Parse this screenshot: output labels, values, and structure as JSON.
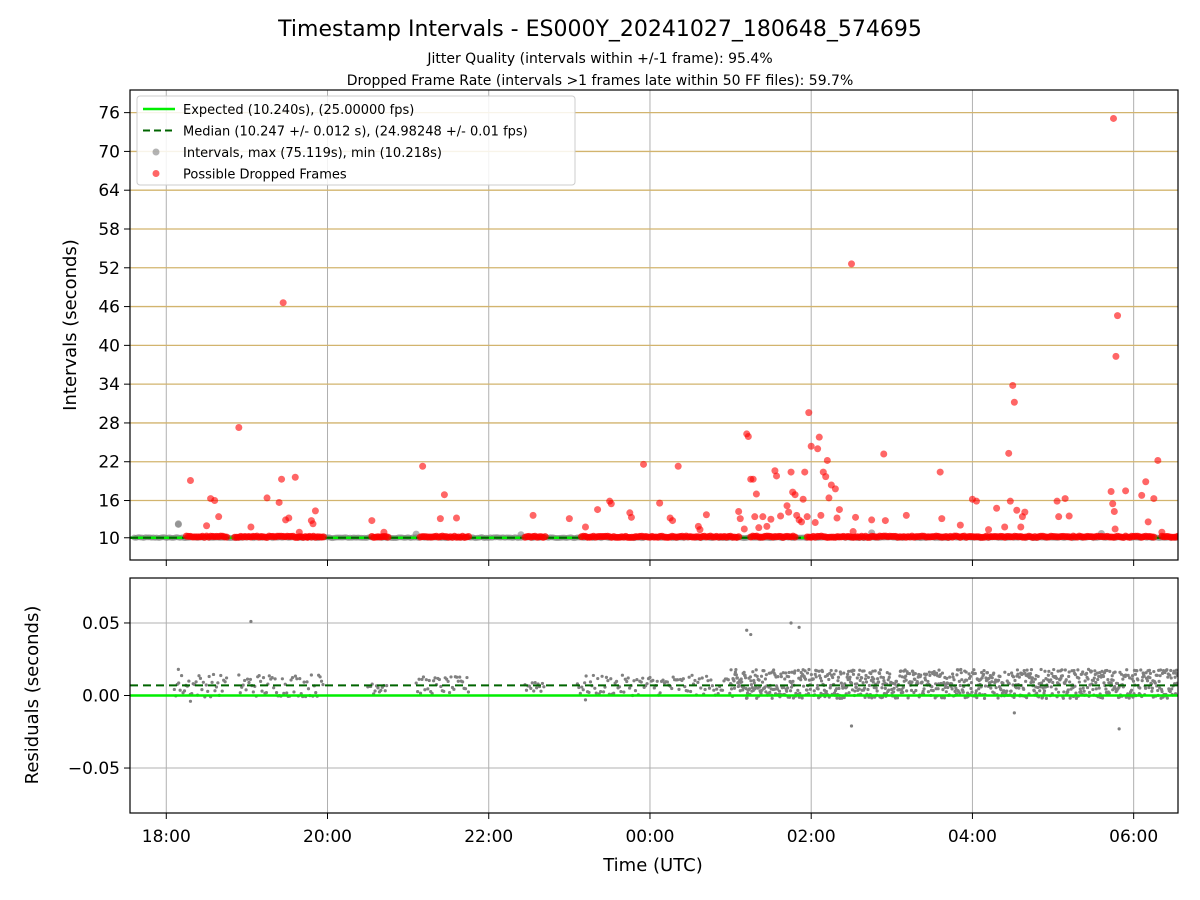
{
  "title": "Timestamp Intervals - ES000Y_20241027_180648_574695",
  "subtitle_1": "Jitter Quality (intervals within +/-1 frame): 95.4%",
  "subtitle_2": "Dropped Frame Rate (intervals >1 frames late within 50 FF files): 59.7%",
  "colors": {
    "expected": "#00ee00",
    "median": "#006400",
    "intervals": "#808080",
    "dropped": "#ff0000",
    "threshold_lines": "#d2b46e",
    "grid": "#b0b0b0"
  },
  "chart_data": [
    {
      "type": "scatter",
      "ylabel": "Intervals (seconds)",
      "ylim": [
        6.8,
        79.5
      ],
      "yticks": [
        "10",
        "16",
        "22",
        "28",
        "34",
        "40",
        "46",
        "52",
        "58",
        "64",
        "70",
        "76"
      ],
      "threshold_lines": [
        10.24,
        16,
        22,
        28,
        34,
        40,
        46,
        52,
        58,
        64,
        70,
        76
      ],
      "grid": true,
      "legend_position": "top-left",
      "legend": [
        {
          "label": "Expected (10.240s), (25.00000 fps)",
          "kind": "solid-line",
          "color": "#00ee00"
        },
        {
          "label": "Median (10.247 +/- 0.012 s), (24.98248 +/- 0.01 fps)",
          "kind": "dashed-line",
          "color": "#006400"
        },
        {
          "label": "Intervals, max (75.119s), min (10.218s)",
          "kind": "marker",
          "color": "#808080"
        },
        {
          "label": "Possible Dropped Frames",
          "kind": "marker",
          "color": "#ff0000"
        }
      ],
      "expected": 10.24,
      "median": 10.247,
      "dropped_clusters": [
        [
          18.25,
          18.75
        ],
        [
          18.85,
          19.75
        ],
        [
          19.75,
          19.95
        ],
        [
          20.55,
          20.75
        ],
        [
          21.15,
          21.75
        ],
        [
          22.45,
          22.7
        ],
        [
          23.15,
          25.1
        ],
        [
          25.25,
          25.8
        ],
        [
          25.95,
          30.25
        ],
        [
          30.35,
          30.95
        ],
        [
          31.05,
          31.7
        ],
        [
          31.9,
          32.4
        ],
        [
          32.95,
          33.8
        ],
        [
          34.1,
          34.75
        ]
      ],
      "points": [
        {
          "t": 18.15,
          "v": 12.4,
          "kind": "interval"
        },
        {
          "t": 18.3,
          "v": 19.1,
          "kind": "dropped"
        },
        {
          "t": 18.5,
          "v": 12.1,
          "kind": "dropped"
        },
        {
          "t": 18.55,
          "v": 16.3,
          "kind": "dropped"
        },
        {
          "t": 18.6,
          "v": 16.0,
          "kind": "dropped"
        },
        {
          "t": 18.65,
          "v": 13.5,
          "kind": "dropped"
        },
        {
          "t": 18.9,
          "v": 27.3,
          "kind": "dropped"
        },
        {
          "t": 19.05,
          "v": 11.9,
          "kind": "dropped"
        },
        {
          "t": 19.25,
          "v": 16.4,
          "kind": "dropped"
        },
        {
          "t": 19.4,
          "v": 15.7,
          "kind": "dropped"
        },
        {
          "t": 19.43,
          "v": 19.3,
          "kind": "dropped"
        },
        {
          "t": 19.48,
          "v": 13.0,
          "kind": "dropped"
        },
        {
          "t": 19.52,
          "v": 13.3,
          "kind": "dropped"
        },
        {
          "t": 19.45,
          "v": 46.6,
          "kind": "dropped"
        },
        {
          "t": 19.6,
          "v": 19.6,
          "kind": "dropped"
        },
        {
          "t": 19.65,
          "v": 11.1,
          "kind": "dropped"
        },
        {
          "t": 19.8,
          "v": 12.9,
          "kind": "dropped"
        },
        {
          "t": 19.82,
          "v": 12.4,
          "kind": "dropped"
        },
        {
          "t": 19.85,
          "v": 14.4,
          "kind": "dropped"
        },
        {
          "t": 20.55,
          "v": 12.9,
          "kind": "dropped"
        },
        {
          "t": 20.7,
          "v": 11.1,
          "kind": "dropped"
        },
        {
          "t": 21.18,
          "v": 21.3,
          "kind": "dropped"
        },
        {
          "t": 21.4,
          "v": 13.2,
          "kind": "dropped"
        },
        {
          "t": 21.45,
          "v": 16.9,
          "kind": "dropped"
        },
        {
          "t": 21.6,
          "v": 13.3,
          "kind": "dropped"
        },
        {
          "t": 22.55,
          "v": 13.7,
          "kind": "dropped"
        },
        {
          "t": 23.0,
          "v": 13.2,
          "kind": "dropped"
        },
        {
          "t": 23.2,
          "v": 11.9,
          "kind": "dropped"
        },
        {
          "t": 23.35,
          "v": 14.6,
          "kind": "dropped"
        },
        {
          "t": 23.5,
          "v": 15.9,
          "kind": "dropped"
        },
        {
          "t": 23.52,
          "v": 15.5,
          "kind": "dropped"
        },
        {
          "t": 23.75,
          "v": 14.1,
          "kind": "dropped"
        },
        {
          "t": 23.77,
          "v": 13.4,
          "kind": "dropped"
        },
        {
          "t": 23.92,
          "v": 21.6,
          "kind": "dropped"
        },
        {
          "t": 24.12,
          "v": 15.6,
          "kind": "dropped"
        },
        {
          "t": 24.25,
          "v": 13.3,
          "kind": "dropped"
        },
        {
          "t": 24.28,
          "v": 12.9,
          "kind": "dropped"
        },
        {
          "t": 24.35,
          "v": 21.3,
          "kind": "dropped"
        },
        {
          "t": 24.6,
          "v": 12.0,
          "kind": "dropped"
        },
        {
          "t": 24.62,
          "v": 11.5,
          "kind": "dropped"
        },
        {
          "t": 24.7,
          "v": 13.8,
          "kind": "dropped"
        },
        {
          "t": 25.1,
          "v": 14.3,
          "kind": "dropped"
        },
        {
          "t": 25.12,
          "v": 13.2,
          "kind": "dropped"
        },
        {
          "t": 25.17,
          "v": 11.6,
          "kind": "dropped"
        },
        {
          "t": 25.2,
          "v": 26.3,
          "kind": "dropped"
        },
        {
          "t": 25.22,
          "v": 25.9,
          "kind": "dropped"
        },
        {
          "t": 25.25,
          "v": 19.3,
          "kind": "dropped"
        },
        {
          "t": 25.28,
          "v": 19.3,
          "kind": "dropped"
        },
        {
          "t": 25.3,
          "v": 13.5,
          "kind": "dropped"
        },
        {
          "t": 25.32,
          "v": 17.0,
          "kind": "dropped"
        },
        {
          "t": 25.35,
          "v": 11.8,
          "kind": "dropped"
        },
        {
          "t": 25.4,
          "v": 13.5,
          "kind": "dropped"
        },
        {
          "t": 25.45,
          "v": 12.0,
          "kind": "dropped"
        },
        {
          "t": 25.5,
          "v": 13.1,
          "kind": "dropped"
        },
        {
          "t": 25.55,
          "v": 20.6,
          "kind": "dropped"
        },
        {
          "t": 25.57,
          "v": 19.8,
          "kind": "dropped"
        },
        {
          "t": 25.62,
          "v": 13.6,
          "kind": "dropped"
        },
        {
          "t": 25.7,
          "v": 15.2,
          "kind": "dropped"
        },
        {
          "t": 25.72,
          "v": 14.2,
          "kind": "dropped"
        },
        {
          "t": 25.75,
          "v": 20.4,
          "kind": "dropped"
        },
        {
          "t": 25.77,
          "v": 17.3,
          "kind": "dropped"
        },
        {
          "t": 25.8,
          "v": 16.9,
          "kind": "dropped"
        },
        {
          "t": 25.82,
          "v": 13.7,
          "kind": "dropped"
        },
        {
          "t": 25.85,
          "v": 13.0,
          "kind": "dropped"
        },
        {
          "t": 25.88,
          "v": 12.7,
          "kind": "dropped"
        },
        {
          "t": 25.9,
          "v": 16.2,
          "kind": "dropped"
        },
        {
          "t": 25.92,
          "v": 20.4,
          "kind": "dropped"
        },
        {
          "t": 25.95,
          "v": 13.5,
          "kind": "dropped"
        },
        {
          "t": 25.97,
          "v": 29.6,
          "kind": "dropped"
        },
        {
          "t": 26.0,
          "v": 24.4,
          "kind": "dropped"
        },
        {
          "t": 26.05,
          "v": 12.6,
          "kind": "dropped"
        },
        {
          "t": 26.08,
          "v": 24.0,
          "kind": "dropped"
        },
        {
          "t": 26.1,
          "v": 25.8,
          "kind": "dropped"
        },
        {
          "t": 26.12,
          "v": 13.7,
          "kind": "dropped"
        },
        {
          "t": 26.15,
          "v": 20.4,
          "kind": "dropped"
        },
        {
          "t": 26.18,
          "v": 19.7,
          "kind": "dropped"
        },
        {
          "t": 26.2,
          "v": 22.2,
          "kind": "dropped"
        },
        {
          "t": 26.22,
          "v": 16.4,
          "kind": "dropped"
        },
        {
          "t": 26.25,
          "v": 18.4,
          "kind": "dropped"
        },
        {
          "t": 26.3,
          "v": 17.8,
          "kind": "dropped"
        },
        {
          "t": 26.32,
          "v": 13.3,
          "kind": "dropped"
        },
        {
          "t": 26.35,
          "v": 14.6,
          "kind": "dropped"
        },
        {
          "t": 26.5,
          "v": 52.6,
          "kind": "dropped"
        },
        {
          "t": 26.52,
          "v": 11.2,
          "kind": "dropped"
        },
        {
          "t": 26.55,
          "v": 13.4,
          "kind": "dropped"
        },
        {
          "t": 26.75,
          "v": 13.0,
          "kind": "dropped"
        },
        {
          "t": 26.9,
          "v": 23.2,
          "kind": "dropped"
        },
        {
          "t": 26.92,
          "v": 12.9,
          "kind": "dropped"
        },
        {
          "t": 27.18,
          "v": 13.7,
          "kind": "dropped"
        },
        {
          "t": 27.6,
          "v": 20.4,
          "kind": "dropped"
        },
        {
          "t": 27.62,
          "v": 13.2,
          "kind": "dropped"
        },
        {
          "t": 27.85,
          "v": 12.2,
          "kind": "dropped"
        },
        {
          "t": 28.0,
          "v": 16.2,
          "kind": "dropped"
        },
        {
          "t": 28.05,
          "v": 15.9,
          "kind": "dropped"
        },
        {
          "t": 28.2,
          "v": 11.5,
          "kind": "dropped"
        },
        {
          "t": 28.3,
          "v": 14.8,
          "kind": "dropped"
        },
        {
          "t": 28.4,
          "v": 11.9,
          "kind": "dropped"
        },
        {
          "t": 28.45,
          "v": 23.3,
          "kind": "dropped"
        },
        {
          "t": 28.47,
          "v": 15.9,
          "kind": "dropped"
        },
        {
          "t": 28.5,
          "v": 33.8,
          "kind": "dropped"
        },
        {
          "t": 28.52,
          "v": 31.2,
          "kind": "dropped"
        },
        {
          "t": 28.55,
          "v": 14.5,
          "kind": "dropped"
        },
        {
          "t": 28.6,
          "v": 11.9,
          "kind": "dropped"
        },
        {
          "t": 28.62,
          "v": 13.5,
          "kind": "dropped"
        },
        {
          "t": 28.65,
          "v": 14.2,
          "kind": "dropped"
        },
        {
          "t": 29.05,
          "v": 15.9,
          "kind": "dropped"
        },
        {
          "t": 29.07,
          "v": 13.5,
          "kind": "dropped"
        },
        {
          "t": 29.15,
          "v": 16.3,
          "kind": "dropped"
        },
        {
          "t": 29.2,
          "v": 13.6,
          "kind": "dropped"
        },
        {
          "t": 29.75,
          "v": 75.1,
          "kind": "dropped"
        },
        {
          "t": 29.8,
          "v": 44.6,
          "kind": "dropped"
        },
        {
          "t": 29.78,
          "v": 38.3,
          "kind": "dropped"
        },
        {
          "t": 29.72,
          "v": 17.4,
          "kind": "dropped"
        },
        {
          "t": 29.74,
          "v": 15.5,
          "kind": "dropped"
        },
        {
          "t": 29.76,
          "v": 14.3,
          "kind": "dropped"
        },
        {
          "t": 29.77,
          "v": 11.6,
          "kind": "dropped"
        },
        {
          "t": 29.9,
          "v": 17.5,
          "kind": "dropped"
        },
        {
          "t": 30.1,
          "v": 16.8,
          "kind": "dropped"
        },
        {
          "t": 30.15,
          "v": 18.9,
          "kind": "dropped"
        },
        {
          "t": 30.18,
          "v": 12.7,
          "kind": "dropped"
        },
        {
          "t": 30.25,
          "v": 16.3,
          "kind": "dropped"
        },
        {
          "t": 30.3,
          "v": 22.2,
          "kind": "dropped"
        },
        {
          "t": 30.35,
          "v": 11.1,
          "kind": "dropped"
        }
      ],
      "gray_points": [
        {
          "t": 18.15,
          "v": 12.3
        },
        {
          "t": 21.1,
          "v": 10.8
        },
        {
          "t": 22.4,
          "v": 10.7
        },
        {
          "t": 26.75,
          "v": 11.0
        },
        {
          "t": 29.6,
          "v": 10.9
        }
      ]
    },
    {
      "type": "scatter",
      "xlabel": "Time (UTC)",
      "ylabel": "Residuals (seconds)",
      "ylim": [
        -0.081,
        0.081
      ],
      "yticks": [
        "−0.05",
        "0.00",
        "0.05"
      ],
      "ytick_values": [
        -0.05,
        0.0,
        0.05
      ],
      "xticks": [
        "18:00",
        "20:00",
        "22:00",
        "00:00",
        "02:00",
        "04:00",
        "06:00"
      ],
      "xtick_hours": [
        18,
        20,
        22,
        24,
        26,
        28,
        30
      ],
      "xlim_hours": [
        17.55,
        30.55
      ],
      "grid": true,
      "expected_residual": 0.0,
      "median_residual": 0.007,
      "segments": [
        {
          "start": 18.1,
          "end": 18.75,
          "level": 0.007,
          "spread": 0.008
        },
        {
          "start": 18.9,
          "end": 19.95,
          "level": 0.007,
          "spread": 0.008
        },
        {
          "start": 20.5,
          "end": 20.75,
          "level": 0.007,
          "spread": 0.006
        },
        {
          "start": 21.1,
          "end": 21.75,
          "level": 0.007,
          "spread": 0.006
        },
        {
          "start": 22.45,
          "end": 22.7,
          "level": 0.007,
          "spread": 0.005
        },
        {
          "start": 23.1,
          "end": 25.0,
          "level": 0.007,
          "spread": 0.007
        },
        {
          "start": 25.0,
          "end": 30.55,
          "level": 0.008,
          "spread": 0.01
        }
      ],
      "outliers": [
        {
          "t": 19.05,
          "v": 0.051
        },
        {
          "t": 25.2,
          "v": 0.045
        },
        {
          "t": 25.25,
          "v": 0.042
        },
        {
          "t": 25.75,
          "v": 0.05
        },
        {
          "t": 25.85,
          "v": 0.047
        },
        {
          "t": 26.5,
          "v": -0.021
        },
        {
          "t": 28.52,
          "v": -0.012
        },
        {
          "t": 29.82,
          "v": -0.023
        },
        {
          "t": 18.15,
          "v": 0.018
        },
        {
          "t": 18.3,
          "v": -0.004
        },
        {
          "t": 23.2,
          "v": -0.003
        }
      ]
    }
  ]
}
